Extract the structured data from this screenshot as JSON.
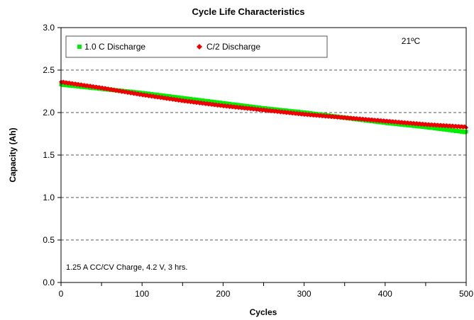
{
  "chart_data": {
    "type": "scatter",
    "title": "Cycle Life Characteristics",
    "xlabel": "Cycles",
    "ylabel": "Capacity (Ah)",
    "xlim": [
      0,
      500
    ],
    "ylim": [
      0.0,
      3.0
    ],
    "x_ticks": [
      "0",
      "100",
      "200",
      "300",
      "400",
      "500"
    ],
    "y_ticks": [
      "0.0",
      "0.5",
      "1.0",
      "1.5",
      "2.0",
      "2.5",
      "3.0"
    ],
    "grid": "horizontal dashed",
    "legend_position": "top-left",
    "annotations": {
      "temperature": "21ºC",
      "charge_condition": "1.25 A CC/CV Charge, 4.2 V, 3 hrs."
    },
    "series": [
      {
        "name": "1.0 C Discharge",
        "color": "#00ee00",
        "marker": "square",
        "x": [
          0,
          50,
          100,
          150,
          200,
          250,
          300,
          350,
          400,
          450,
          500
        ],
        "y": [
          2.33,
          2.28,
          2.23,
          2.17,
          2.11,
          2.05,
          2.0,
          1.94,
          1.88,
          1.83,
          1.77
        ]
      },
      {
        "name": "C/2 Discharge",
        "color": "#ee0000",
        "marker": "diamond",
        "x": [
          0,
          50,
          100,
          150,
          200,
          250,
          300,
          350,
          400,
          450,
          500
        ],
        "y": [
          2.36,
          2.29,
          2.21,
          2.14,
          2.08,
          2.03,
          1.98,
          1.94,
          1.9,
          1.86,
          1.83
        ]
      }
    ]
  }
}
